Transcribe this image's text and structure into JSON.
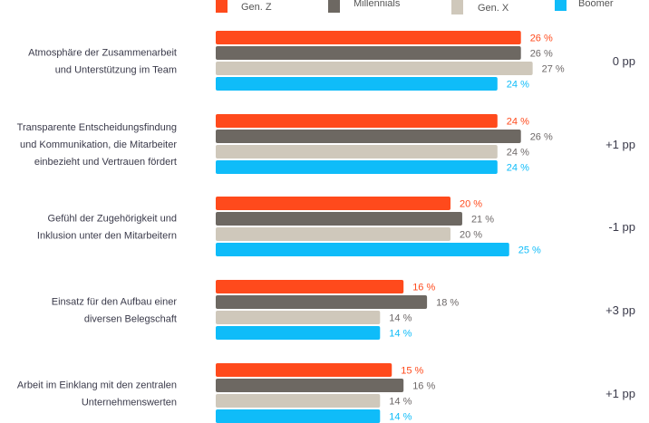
{
  "chart_data": {
    "type": "bar",
    "orientation": "horizontal",
    "title": "",
    "xlabel": "",
    "ylabel": "",
    "xlim": [
      0,
      30
    ],
    "grid": false,
    "legend_position": "top",
    "value_suffix": " %",
    "categories": [
      [
        "Atmosphäre der Zusammenarbeit",
        "und Unterstützung im Team"
      ],
      [
        "Transparente Entscheidungsfindung",
        "und Kommunikation, die Mitarbeiter",
        "einbezieht und Vertrauen fördert"
      ],
      [
        "Gefühl der Zugehörigkeit und",
        "Inklusion unter den Mitarbeitern"
      ],
      [
        "Einsatz für den Aufbau einer",
        "diversen Belegschaft"
      ],
      [
        "Arbeit im Einklang mit den zentralen",
        "Unternehmenswerten"
      ]
    ],
    "series": [
      {
        "name": "Gen. Z",
        "color": "#ff4a1c",
        "label_color": "#ff4a1c",
        "values": [
          26,
          24,
          20,
          16,
          15
        ]
      },
      {
        "name": "Millennials",
        "color": "#6d6862",
        "label_color": "#6d6868",
        "values": [
          26,
          26,
          21,
          18,
          16
        ]
      },
      {
        "name": "Gen. X",
        "color": "#cfc8bb",
        "label_color": "#6d6868",
        "values": [
          27,
          24,
          20,
          14,
          14
        ]
      },
      {
        "name": "Boomer",
        "color": "#0fbcf9",
        "label_color": "#0fbcf9",
        "values": [
          24,
          24,
          25,
          14,
          14
        ]
      }
    ],
    "differences": [
      "0 pp",
      "+1 pp",
      "-1 pp",
      "+3 pp",
      "+1 pp"
    ]
  }
}
